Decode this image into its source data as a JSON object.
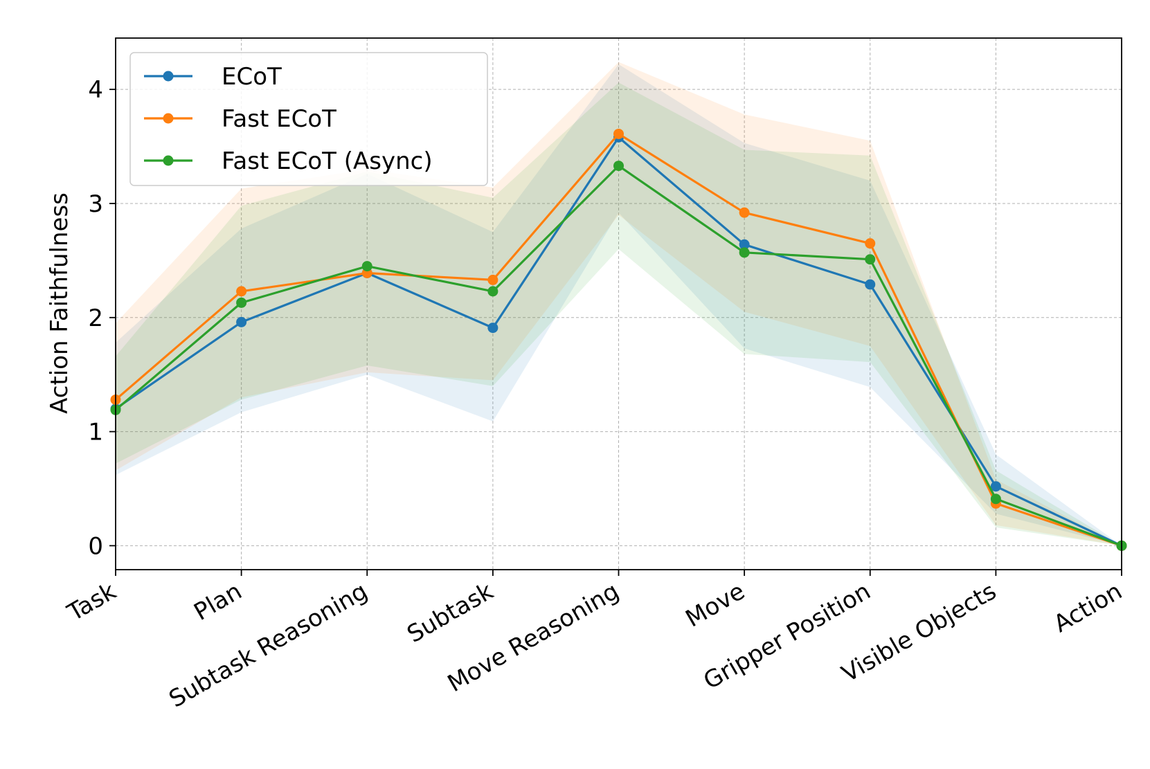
{
  "chart_data": {
    "type": "line",
    "title": "",
    "xlabel": "",
    "ylabel": "Action Faithfulness",
    "categories": [
      "Task",
      "Plan",
      "Subtask Reasoning",
      "Subtask",
      "Move Reasoning",
      "Move",
      "Gripper Position",
      "Visible Objects",
      "Action"
    ],
    "ylim": [
      -0.21,
      4.45
    ],
    "yticks": [
      0,
      1,
      2,
      3,
      4
    ],
    "grid": true,
    "legend_position": "top-left",
    "series": [
      {
        "name": "ECoT",
        "color": "#1f77b4",
        "values": [
          1.2,
          1.96,
          2.39,
          1.91,
          3.58,
          2.64,
          2.29,
          0.52,
          0.0
        ],
        "lower": [
          0.62,
          1.17,
          1.5,
          1.09,
          2.92,
          1.73,
          1.39,
          0.28,
          0.0
        ],
        "upper": [
          1.78,
          2.78,
          3.26,
          2.75,
          4.22,
          3.53,
          3.2,
          0.8,
          0.0
        ]
      },
      {
        "name": "Fast ECoT",
        "color": "#ff7f0e",
        "values": [
          1.28,
          2.23,
          2.39,
          2.33,
          3.61,
          2.92,
          2.65,
          0.37,
          0.0
        ],
        "lower": [
          0.66,
          1.3,
          1.52,
          1.45,
          2.9,
          2.05,
          1.75,
          0.18,
          0.0
        ],
        "upper": [
          1.95,
          3.13,
          3.3,
          3.14,
          4.24,
          3.78,
          3.55,
          0.58,
          0.0
        ]
      },
      {
        "name": "Fast ECoT (Async)",
        "color": "#2ca02c",
        "values": [
          1.19,
          2.13,
          2.45,
          2.23,
          3.33,
          2.57,
          2.51,
          0.41,
          0.0
        ],
        "lower": [
          0.72,
          1.28,
          1.58,
          1.4,
          2.6,
          1.68,
          1.61,
          0.16,
          0.0
        ],
        "upper": [
          1.66,
          2.98,
          3.28,
          3.05,
          4.06,
          3.47,
          3.42,
          0.66,
          0.0
        ]
      }
    ]
  }
}
